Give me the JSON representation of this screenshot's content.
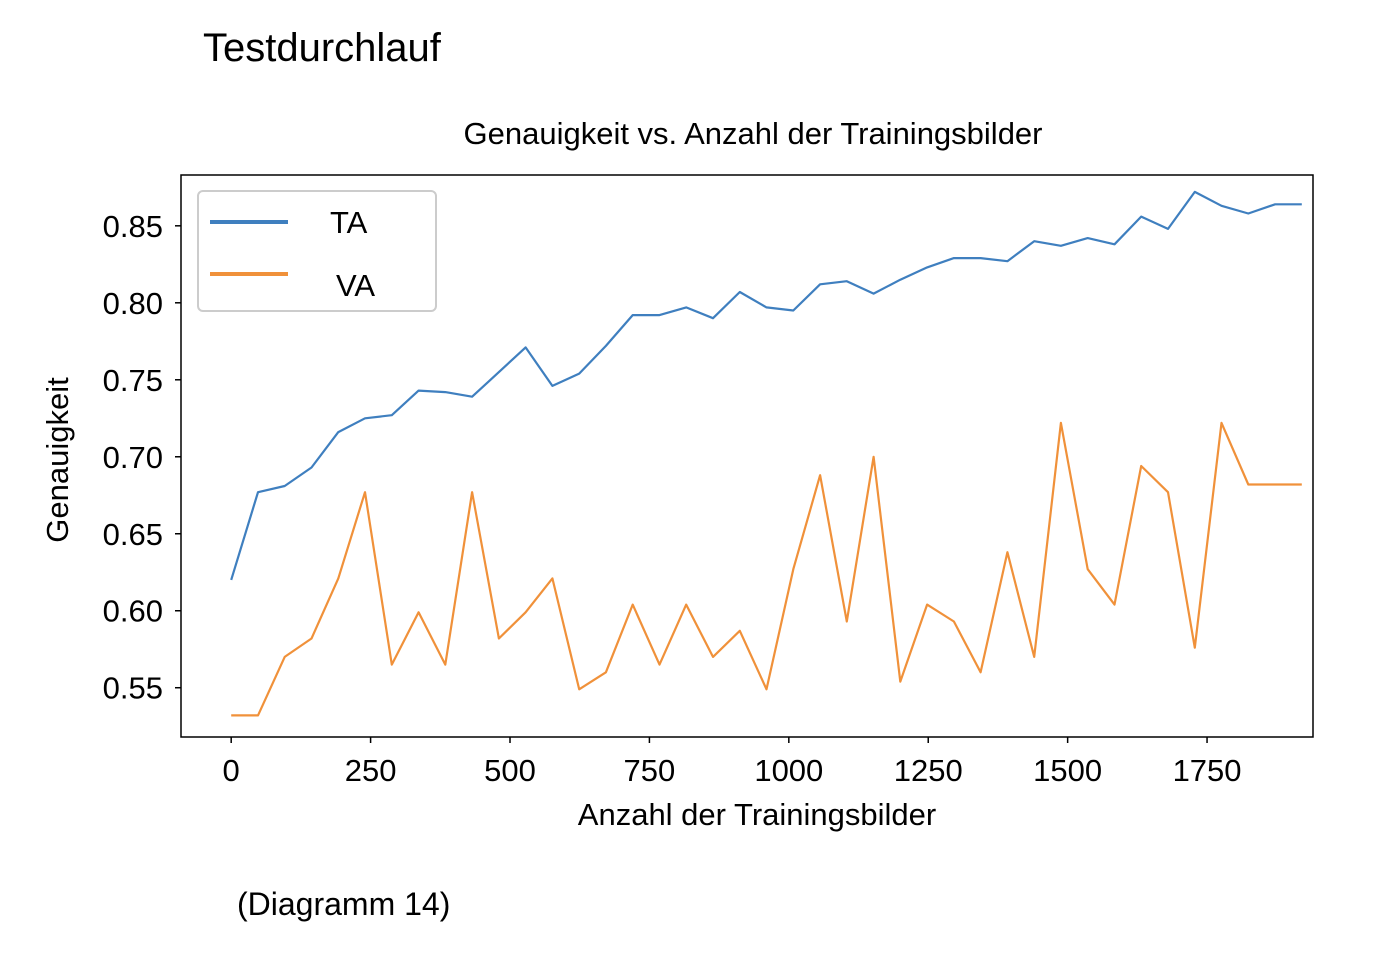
{
  "page": {
    "heading": "Testdurchlauf",
    "caption": "(Diagramm 14)"
  },
  "colors": {
    "TA": "#3f7fbf",
    "VA": "#f0913a",
    "axes": "#000000",
    "legend_border": "#cccccc"
  },
  "chart_data": {
    "type": "line",
    "title": "Genauigkeit vs. Anzahl der Trainingsbilder",
    "xlabel": "Anzahl der Trainingsbilder",
    "ylabel": "Genauigkeit",
    "xlim": [
      -90,
      1940
    ],
    "ylim": [
      0.518,
      0.883
    ],
    "xticks": [
      0,
      250,
      500,
      750,
      1000,
      1250,
      1500,
      1750
    ],
    "xtick_labels": [
      "0",
      "250",
      "500",
      "750",
      "1000",
      "1250",
      "1500",
      "1750"
    ],
    "yticks": [
      0.55,
      0.6,
      0.65,
      0.7,
      0.75,
      0.8,
      0.85
    ],
    "ytick_labels": [
      "0.55",
      "0.60",
      "0.65",
      "0.70",
      "0.75",
      "0.80",
      "0.85"
    ],
    "grid": false,
    "legend_position": "top-left",
    "x": [
      0,
      48,
      96,
      144,
      192,
      240,
      288,
      336,
      384,
      432,
      480,
      528,
      576,
      624,
      672,
      720,
      768,
      816,
      864,
      912,
      960,
      1008,
      1056,
      1104,
      1152,
      1200,
      1248,
      1296,
      1344,
      1392,
      1440,
      1488,
      1536,
      1584,
      1632,
      1680,
      1728,
      1776,
      1824,
      1872,
      1920
    ],
    "series": [
      {
        "name": "TA",
        "color_key": "TA",
        "values": [
          0.62,
          0.677,
          0.681,
          0.693,
          0.716,
          0.725,
          0.727,
          0.743,
          0.742,
          0.739,
          0.755,
          0.771,
          0.746,
          0.754,
          0.772,
          0.792,
          0.792,
          0.797,
          0.79,
          0.807,
          0.797,
          0.795,
          0.812,
          0.814,
          0.806,
          0.815,
          0.823,
          0.829,
          0.829,
          0.827,
          0.84,
          0.837,
          0.842,
          0.838,
          0.856,
          0.848,
          0.872,
          0.863,
          0.858,
          0.864,
          0.864
        ]
      },
      {
        "name": "VA",
        "color_key": "VA",
        "values": [
          0.532,
          0.532,
          0.57,
          0.582,
          0.621,
          0.677,
          0.565,
          0.599,
          0.565,
          0.677,
          0.582,
          0.599,
          0.621,
          0.549,
          0.56,
          0.604,
          0.565,
          0.604,
          0.57,
          0.587,
          0.549,
          0.627,
          0.688,
          0.593,
          0.7,
          0.554,
          0.604,
          0.593,
          0.56,
          0.638,
          0.57,
          0.722,
          0.627,
          0.604,
          0.694,
          0.677,
          0.576,
          0.722,
          0.682,
          0.682,
          0.682
        ]
      }
    ]
  }
}
